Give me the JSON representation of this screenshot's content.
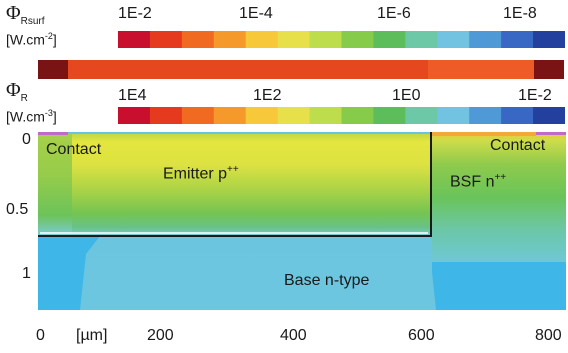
{
  "scale_surface": {
    "symbol_main": "Φ",
    "symbol_sub": "Rsurf",
    "unit_main": "[W.cm",
    "unit_exp": "-2",
    "unit_end": "]",
    "ticks": [
      "1E-2",
      "1E-4",
      "1E-6",
      "1E-8"
    ]
  },
  "scale_volume": {
    "symbol_main": "Φ",
    "symbol_sub": "R",
    "unit_main": "[W.cm",
    "unit_exp": "-3",
    "unit_end": "]",
    "ticks": [
      "1E4",
      "1E2",
      "1E0",
      "1E-2"
    ]
  },
  "colorbar_colors": [
    "#c8102e",
    "#e53a1e",
    "#f06a22",
    "#f59a2a",
    "#f6c83a",
    "#e8e04a",
    "#bedd4c",
    "#86cc4a",
    "#5cbd5a",
    "#6cc8a6",
    "#72c3e2",
    "#4f9ad6",
    "#3868c4",
    "#24409e"
  ],
  "regions": {
    "contact_left": "Contact",
    "contact_right": "Contact",
    "emitter_main": "Emitter p",
    "emitter_sup": "++",
    "bsf_main": "BSF n",
    "bsf_sup": "++",
    "base": "Base n-type"
  },
  "y_axis": {
    "ticks": [
      "0",
      "0.5",
      "1"
    ]
  },
  "x_axis": {
    "ticks": [
      "0",
      "200",
      "400",
      "600",
      "800"
    ],
    "unit": "[µm]"
  }
}
